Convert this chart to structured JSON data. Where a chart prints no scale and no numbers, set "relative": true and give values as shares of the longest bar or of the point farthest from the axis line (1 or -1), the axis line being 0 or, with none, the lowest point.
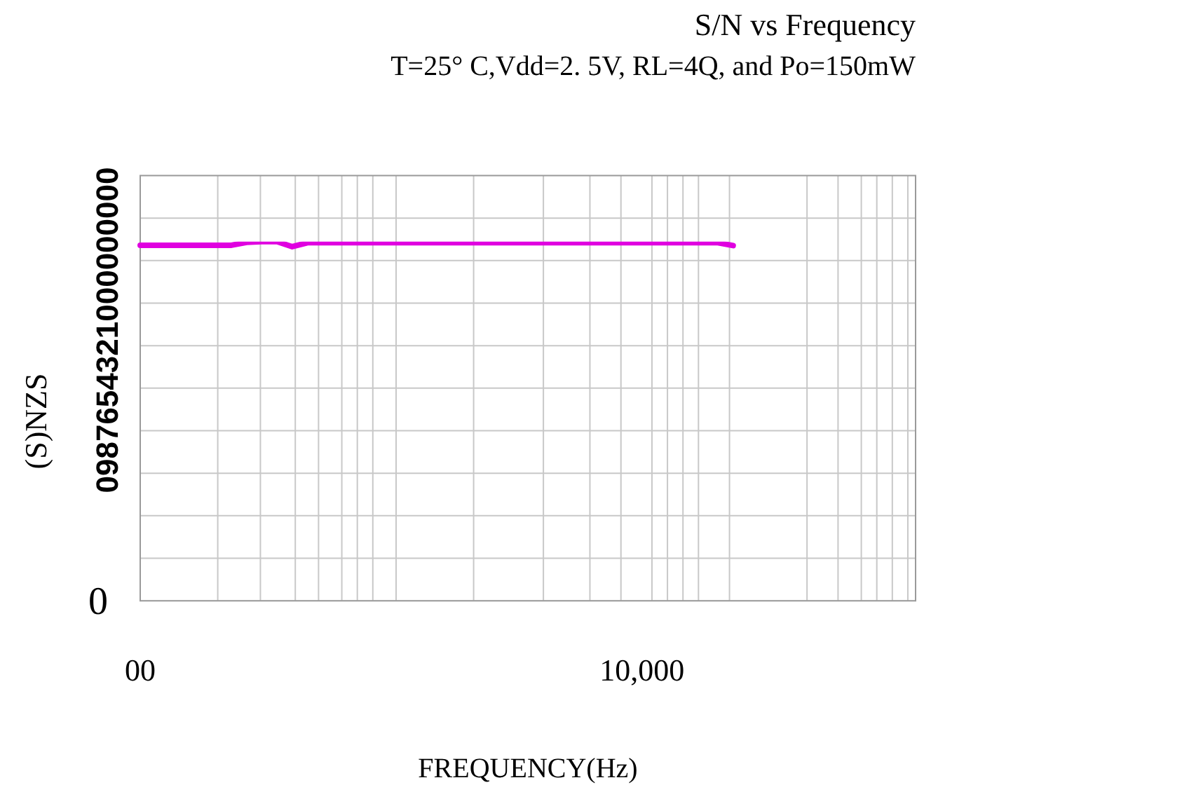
{
  "chart_data": {
    "type": "line",
    "title": "S/N vs Frequency",
    "subtitle": "T=25° C,Vdd=2. 5V, RL=4Q, and Po=150mW",
    "xlabel": "FREQUENCY(Hz)",
    "ylabel": "(S)NZS",
    "relative": true,
    "grid": true,
    "marker": "none",
    "line_style": "solid",
    "categories": [
      "00",
      null,
      null,
      null,
      null,
      null,
      null,
      null,
      null,
      null,
      null,
      null,
      null,
      null,
      null,
      null,
      null,
      null,
      null,
      null,
      null,
      null,
      null,
      null,
      null,
      null,
      null,
      null,
      null,
      null,
      null,
      null,
      null,
      "10,000",
      null,
      null,
      null,
      null,
      null,
      null,
      null,
      null,
      null,
      null,
      null,
      null,
      null,
      null,
      null,
      null,
      null,
      null
    ],
    "series": [
      {
        "color": "#e000e0",
        "values": [
          0.99,
          0.99,
          0.99,
          0.99,
          0.99,
          0.99,
          0.99,
          0.998,
          1,
          1,
          0.986,
          0.997,
          0.997,
          0.997,
          0.997,
          0.997,
          0.997,
          0.997,
          0.997,
          0.997,
          0.997,
          0.997,
          0.997,
          0.997,
          0.997,
          0.997,
          0.997,
          0.997,
          0.997,
          0.997,
          0.997,
          0.997,
          0.997,
          0.997,
          0.997,
          0.997,
          0.997,
          0.997,
          0.997,
          0.989,
          null,
          null,
          null,
          null,
          null,
          null,
          null,
          null,
          null,
          null,
          null,
          null
        ]
      }
    ],
    "annotations": [
      "0987654321000000000",
      "0"
    ]
  }
}
